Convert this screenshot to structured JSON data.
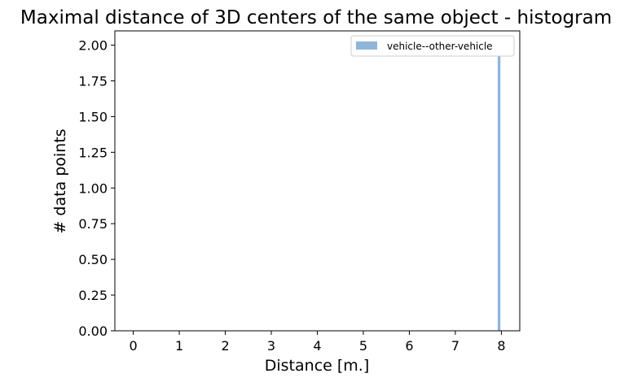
{
  "chart_data": {
    "type": "bar",
    "title": "Maximal distance of 3D centers of the same object - histogram",
    "xlabel": "Distance [m.]",
    "ylabel": "# data points",
    "xlim": [
      -0.4,
      8.4
    ],
    "ylim": [
      0,
      2.1
    ],
    "xticks": [
      "0",
      "1",
      "2",
      "3",
      "4",
      "5",
      "6",
      "7",
      "8"
    ],
    "yticks": [
      "0.00",
      "0.25",
      "0.50",
      "0.75",
      "1.00",
      "1.25",
      "1.50",
      "1.75",
      "2.00"
    ],
    "grid": false,
    "legend_position": "top-right",
    "series": [
      {
        "name": "vehicle--other-vehicle",
        "color": "#8fb6d9",
        "bins": [
          {
            "x0": 7.92,
            "x1": 7.98,
            "value": 2
          }
        ]
      }
    ]
  }
}
